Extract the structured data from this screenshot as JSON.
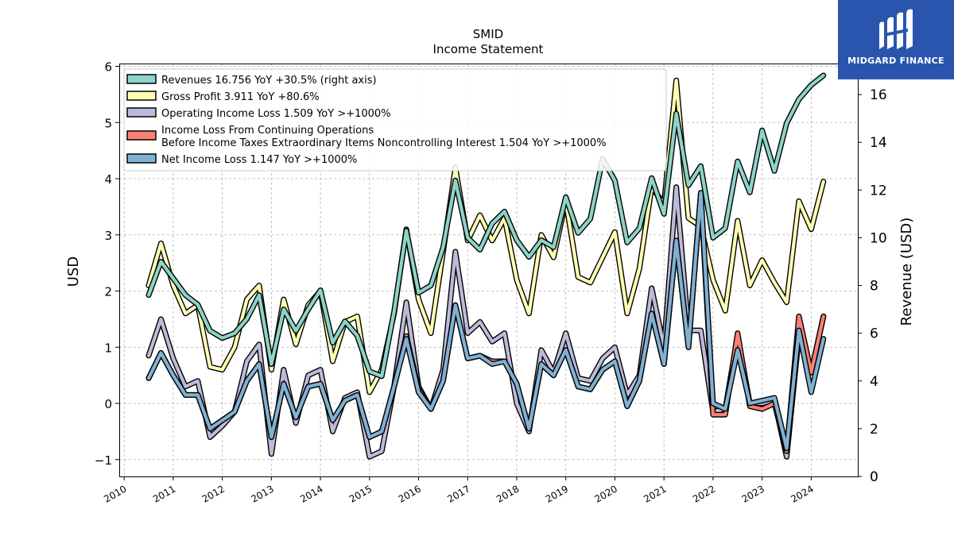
{
  "chart_data": {
    "type": "line",
    "title": "SMID",
    "subtitle": "Income Statement",
    "ylabel": "USD",
    "y2label": "Revenue (USD)",
    "ylim": [
      -1.3,
      6.05
    ],
    "y2lim": [
      0,
      17.3
    ],
    "xlim": [
      2009.9,
      2024.95
    ],
    "yticks": [
      "6",
      "5",
      "4",
      "3",
      "2",
      "1",
      "0",
      "−1"
    ],
    "y2ticks": [
      "16",
      "14",
      "12",
      "10",
      "8",
      "6",
      "4",
      "2",
      "0"
    ],
    "xticks": [
      "2010",
      "2011",
      "2012",
      "2013",
      "2014",
      "2015",
      "2016",
      "2017",
      "2018",
      "2019",
      "2020",
      "2021",
      "2022",
      "2023",
      "2024"
    ],
    "grid": true,
    "legend_position": "upper-left",
    "legend": [
      "Revenues  16.756 YoY +30.5% (right axis)",
      "Gross Profit  3.911 YoY +80.6%",
      "Operating Income Loss  1.509 YoY >+1000%",
      "Income Loss From Continuing Operations\nBefore Income Taxes Extraordinary Items Noncontrolling Interest  1.504 YoY >+1000%",
      "Net Income Loss  1.147 YoY >+1000%"
    ],
    "x": [
      2010.5,
      2010.75,
      2011.0,
      2011.25,
      2011.5,
      2011.75,
      2012.0,
      2012.25,
      2012.5,
      2012.75,
      2013.0,
      2013.25,
      2013.5,
      2013.75,
      2014.0,
      2014.25,
      2014.5,
      2014.75,
      2015.0,
      2015.25,
      2015.5,
      2015.75,
      2016.0,
      2016.25,
      2016.5,
      2016.75,
      2017.0,
      2017.25,
      2017.5,
      2017.75,
      2018.0,
      2018.25,
      2018.5,
      2018.75,
      2019.0,
      2019.25,
      2019.5,
      2019.75,
      2020.0,
      2020.25,
      2020.5,
      2020.75,
      2021.0,
      2021.25,
      2021.5,
      2021.75,
      2022.0,
      2022.25,
      2022.5,
      2022.75,
      2023.0,
      2023.25,
      2023.5,
      2023.75,
      2024.0,
      2024.25
    ],
    "series": [
      {
        "name": "Revenues",
        "axis": "right",
        "color": "#8dd3c7",
        "values": [
          7.6,
          9.0,
          8.3,
          7.6,
          7.2,
          6.1,
          5.8,
          6.0,
          6.6,
          7.6,
          4.7,
          7.0,
          6.1,
          7.0,
          7.8,
          5.6,
          6.5,
          5.9,
          4.4,
          4.2,
          6.9,
          10.3,
          7.7,
          8.0,
          9.6,
          12.4,
          10.0,
          9.5,
          10.6,
          11.1,
          9.9,
          9.2,
          9.9,
          9.6,
          11.7,
          10.2,
          10.8,
          13.3,
          12.4,
          9.8,
          10.4,
          12.5,
          11.0,
          15.2,
          12.2,
          13.0,
          10.0,
          10.4,
          13.2,
          11.9,
          14.5,
          12.8,
          14.8,
          15.8,
          16.4,
          16.8
        ]
      },
      {
        "name": "Gross Profit",
        "axis": "left",
        "color": "#ffffb3",
        "values": [
          2.1,
          2.85,
          2.1,
          1.6,
          1.75,
          0.65,
          0.6,
          1.0,
          1.85,
          2.1,
          0.6,
          1.85,
          1.05,
          1.75,
          2.0,
          0.75,
          1.45,
          1.55,
          0.2,
          0.6,
          1.6,
          3.1,
          1.85,
          1.25,
          2.7,
          4.2,
          2.9,
          3.35,
          2.9,
          3.3,
          2.2,
          1.6,
          3.0,
          2.6,
          3.6,
          2.25,
          2.15,
          2.6,
          3.05,
          1.6,
          2.4,
          3.85,
          3.55,
          5.75,
          3.3,
          3.15,
          2.2,
          1.65,
          3.25,
          2.1,
          2.55,
          2.15,
          1.8,
          3.6,
          3.1,
          3.95
        ]
      },
      {
        "name": "Operating Income Loss",
        "axis": "left",
        "color": "#bebada",
        "values": [
          0.85,
          1.5,
          0.8,
          0.3,
          0.4,
          -0.6,
          -0.4,
          -0.15,
          0.75,
          1.05,
          -0.9,
          0.6,
          -0.35,
          0.5,
          0.6,
          -0.5,
          0.1,
          0.2,
          -0.95,
          -0.85,
          0.3,
          1.8,
          0.3,
          -0.1,
          0.6,
          2.7,
          1.25,
          1.45,
          1.1,
          1.25,
          0.0,
          -0.5,
          0.95,
          0.55,
          1.25,
          0.45,
          0.4,
          0.8,
          1.0,
          0.15,
          0.5,
          2.05,
          1.0,
          3.85,
          1.3,
          1.3,
          -0.15,
          -0.1,
          1.2,
          0.0,
          0.0,
          0.05,
          -0.95,
          1.2,
          0.55,
          1.55
        ]
      },
      {
        "name": "Income Loss From Continuing Operations Before Income Taxes Extraordinary Items Noncontrolling Interest",
        "axis": "left",
        "color": "#fb8072",
        "values": [
          0.45,
          0.9,
          0.5,
          0.15,
          0.15,
          -0.45,
          -0.3,
          -0.15,
          0.4,
          0.7,
          -0.6,
          0.35,
          -0.25,
          0.3,
          0.35,
          -0.3,
          0.05,
          0.15,
          -0.6,
          -0.5,
          0.3,
          1.2,
          0.25,
          -0.1,
          0.4,
          1.75,
          0.8,
          0.85,
          0.75,
          0.75,
          0.35,
          -0.45,
          0.7,
          0.5,
          0.95,
          0.3,
          0.25,
          0.6,
          0.75,
          -0.05,
          0.4,
          1.6,
          0.7,
          2.9,
          1.0,
          3.75,
          -0.2,
          -0.2,
          1.25,
          -0.05,
          -0.1,
          0.0,
          -0.85,
          1.55,
          0.55,
          1.55
        ]
      },
      {
        "name": "Net Income Loss",
        "axis": "left",
        "color": "#80b1d3",
        "values": [
          0.45,
          0.9,
          0.5,
          0.15,
          0.15,
          -0.45,
          -0.3,
          -0.15,
          0.4,
          0.7,
          -0.6,
          0.35,
          -0.25,
          0.3,
          0.35,
          -0.3,
          0.05,
          0.15,
          -0.6,
          -0.5,
          0.3,
          1.15,
          0.2,
          -0.1,
          0.4,
          1.75,
          0.8,
          0.85,
          0.7,
          0.75,
          0.35,
          -0.45,
          0.7,
          0.5,
          0.95,
          0.3,
          0.25,
          0.6,
          0.75,
          -0.05,
          0.4,
          1.6,
          0.7,
          2.9,
          1.0,
          3.75,
          0.0,
          -0.1,
          0.95,
          0.0,
          0.05,
          0.1,
          -0.8,
          1.3,
          0.2,
          1.15
        ]
      }
    ]
  },
  "logo": {
    "text": "MIDGARD FINANCE",
    "color": "#2a55ae"
  }
}
